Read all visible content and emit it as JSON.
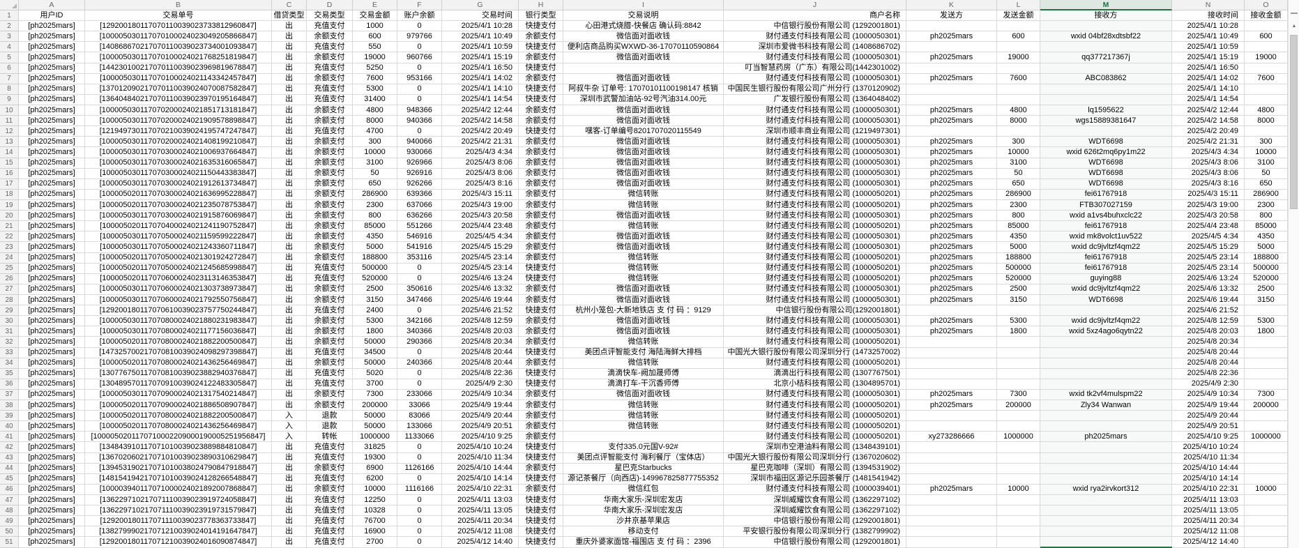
{
  "sheet": {
    "selected_column": "M",
    "first_row_number": "1",
    "last_row_number": "51",
    "column_letters": [
      "A",
      "B",
      "C",
      "D",
      "E",
      "F",
      "G",
      "H",
      "I",
      "J",
      "K",
      "L",
      "M",
      "N",
      "O"
    ],
    "field_headers": [
      "用户ID",
      "交易单号",
      "借贷类型",
      "交易类型",
      "交易金额",
      "账户余额",
      "交易时间",
      "银行类型",
      "交易说明",
      "商户名称",
      "发送方",
      "发送金额",
      "接收方",
      "接收时间",
      "接收金额"
    ],
    "rows": [
      [
        "[ph2025mars]",
        "[129200180117070110039023733812960847]",
        "出",
        "充值支付",
        "1000",
        "0",
        "2025/4/1 10:28",
        "快捷支付",
        "心田港式烧腊-快餐店 确认码:8842",
        "中信银行股份有限公司 (1292001801)",
        "",
        "",
        "",
        "2025/4/1 10:28",
        ""
      ],
      [
        "[ph2025mars]",
        "[100005030117070100024023049205866847]",
        "出",
        "余额支付",
        "600",
        "979766",
        "2025/4/1 10:49",
        "余额支付",
        "微信面对面收钱",
        "财付通支付科技有限公司 (1000050301)",
        "ph2025mars",
        "600",
        "wxid 04bf28xdtsbf22",
        "2025/4/1 10:49",
        "600"
      ],
      [
        "[ph2025mars]",
        "[140868670217070110039023734001093847]",
        "出",
        "充值支付",
        "550",
        "0",
        "2025/4/1 10:59",
        "快捷支付",
        "便利店商品购买WXWD-36-17070110590864",
        "深圳市爱微书科技有限公司 (1408686702)",
        "",
        "",
        "",
        "2025/4/1 10:59",
        ""
      ],
      [
        "[ph2025mars]",
        "[100005030117070100024021768251819847]",
        "出",
        "余额支付",
        "19000",
        "960766",
        "2025/4/1 15:19",
        "余额支付",
        "微信面对面收钱",
        "财付通支付科技有限公司 (1000050301)",
        "ph2025mars",
        "19000",
        "qq377217367j",
        "2025/4/1 15:19",
        "19000"
      ],
      [
        "[ph2025mars]",
        "[144230100217070110039023969819678847]",
        "出",
        "充值支付",
        "5250",
        "0",
        "2025/4/1 16:50",
        "快捷支付",
        "",
        "叮当智慧药房（广东）有限公司(1442301002)",
        "",
        "",
        "",
        "2025/4/1 16:50",
        ""
      ],
      [
        "[ph2025mars]",
        "[100005030117070100024021143342457847]",
        "出",
        "余额支付",
        "7600",
        "953166",
        "2025/4/1 14:02",
        "余额支付",
        "微信面对面收钱",
        "财付通支付科技有限公司 (1000050301)",
        "ph2025mars",
        "7600",
        "ABC083862",
        "2025/4/1 14:02",
        "7600"
      ],
      [
        "[ph2025mars]",
        "[137012090217070110039024070087582847]",
        "出",
        "充值支付",
        "5300",
        "0",
        "2025/4/1 14:10",
        "快捷支付",
        "阿叔牛杂 订单号: 17070101100198147 核销",
        "中国民生银行股份有限公司广州分行 (1370120902)",
        "",
        "",
        "",
        "2025/4/1 14:10",
        ""
      ],
      [
        "[ph2025mars]",
        "[136404840217070110039023970195164847]",
        "出",
        "充值支付",
        "31400",
        "0",
        "2025/4/1 14:54",
        "快捷支付",
        "深圳市武警加油站-92号汽油314.00元",
        "广发银行股份有限公司 (1364048402)",
        "",
        "",
        "",
        "2025/4/1 14:54",
        ""
      ],
      [
        "[ph2025mars]",
        "[100005030117070200024021851713181847]",
        "出",
        "余额支付",
        "4800",
        "948366",
        "2025/4/2 12:44",
        "余额支付",
        "微信面对面收钱",
        "财付通支付科技有限公司 (1000050301)",
        "ph2025mars",
        "4800",
        "lq1595622",
        "2025/4/2 12:44",
        "4800"
      ],
      [
        "[ph2025mars]",
        "[100005030117070200024021909578898847]",
        "出",
        "余额支付",
        "8000",
        "940366",
        "2025/4/2 14:58",
        "余额支付",
        "微信面对面收钱",
        "财付通支付科技有限公司 (1000050301)",
        "ph2025mars",
        "8000",
        "wgs15889381647",
        "2025/4/2 14:58",
        "8000"
      ],
      [
        "[ph2025mars]",
        "[121949730117070210039024195747247847]",
        "出",
        "充值支付",
        "4700",
        "0",
        "2025/4/2 20:49",
        "快捷支付",
        "嘿客-订单编号8201707020115549",
        "深圳市顺丰商业有限公司 (1219497301)",
        "",
        "",
        "",
        "2025/4/2 20:49",
        ""
      ],
      [
        "[ph2025mars]",
        "[100005030117070200024021408199210847]",
        "出",
        "余额支付",
        "300",
        "940066",
        "2025/4/2 21:31",
        "余额支付",
        "微信面对面收钱",
        "财付通支付科技有限公司 (1000050301)",
        "ph2025mars",
        "300",
        "WDT6698",
        "2025/4/2 21:31",
        "300"
      ],
      [
        "[ph2025mars]",
        "[100005030117070300024021006937664847]",
        "出",
        "余额支付",
        "10000",
        "930066",
        "2025/4/3 4:34",
        "余额支付",
        "微信面对面收钱",
        "财付通支付科技有限公司 (1000050301)",
        "ph2025mars",
        "10000",
        "wxid 626t2mq6py1m22",
        "2025/4/3 4:34",
        "10000"
      ],
      [
        "[ph2025mars]",
        "[100005030117070300024021635316065847]",
        "出",
        "余额支付",
        "3100",
        "926966",
        "2025/4/3 8:06",
        "余额支付",
        "微信面对面收钱",
        "财付通支付科技有限公司 (1000050301)",
        "ph2025mars",
        "3100",
        "WDT6698",
        "2025/4/3 8:06",
        "3100"
      ],
      [
        "[ph2025mars]",
        "[100005030117070300024021150443383847]",
        "出",
        "余额支付",
        "50",
        "926916",
        "2025/4/3 8:06",
        "余额支付",
        "微信面对面收钱",
        "财付通支付科技有限公司 (1000050301)",
        "ph2025mars",
        "50",
        "WDT6698",
        "2025/4/3 8:06",
        "50"
      ],
      [
        "[ph2025mars]",
        "[100005030117070300024021912613734847]",
        "出",
        "余额支付",
        "650",
        "926266",
        "2025/4/3 8:16",
        "余额支付",
        "微信面对面收钱",
        "财付通支付科技有限公司 (1000050301)",
        "ph2025mars",
        "650",
        "WDT6698",
        "2025/4/3 8:16",
        "650"
      ],
      [
        "[ph2025mars]",
        "[100005020117070300024021636995228847]",
        "出",
        "余额支付",
        "286900",
        "639366",
        "2025/4/3 15:11",
        "余额支付",
        "微信转账",
        "财付通支付科技有限公司 (1000050201)",
        "ph2025mars",
        "286900",
        "fei61767918",
        "2025/4/3 15:11",
        "286900"
      ],
      [
        "[ph2025mars]",
        "[100005020117070300024021235078753847]",
        "出",
        "余额支付",
        "2300",
        "637066",
        "2025/4/3 19:00",
        "余额支付",
        "微信转账",
        "财付通支付科技有限公司 (1000050201)",
        "ph2025mars",
        "2300",
        "FTB307027159",
        "2025/4/3 19:00",
        "2300"
      ],
      [
        "[ph2025mars]",
        "[100005030117070300024021915876069847]",
        "出",
        "余额支付",
        "800",
        "636266",
        "2025/4/3 20:58",
        "余额支付",
        "微信面对面收钱",
        "财付通支付科技有限公司 (1000050301)",
        "ph2025mars",
        "800",
        "wxid a1vs4buhxclc22",
        "2025/4/3 20:58",
        "800"
      ],
      [
        "[ph2025mars]",
        "[100005020117070400024021241190752847]",
        "出",
        "余额支付",
        "85000",
        "551266",
        "2025/4/4 23:48",
        "余额支付",
        "微信转账",
        "财付通支付科技有限公司 (1000050201)",
        "ph2025mars",
        "85000",
        "fei61767918",
        "2025/4/4 23:48",
        "85000"
      ],
      [
        "[ph2025mars]",
        "[100005030117070500024021159599222847]",
        "出",
        "余额支付",
        "4350",
        "546916",
        "2025/4/5 4:34",
        "余额支付",
        "微信面对面收钱",
        "财付通支付科技有限公司 (1000050301)",
        "ph2025mars",
        "4350",
        "wxid mk8volct1uv522",
        "2025/4/5 4:34",
        "4350"
      ],
      [
        "[ph2025mars]",
        "[100005030117070500024021243360711847]",
        "出",
        "余额支付",
        "5000",
        "541916",
        "2025/4/5 15:29",
        "余额支付",
        "微信面对面收钱",
        "财付通支付科技有限公司 (1000050301)",
        "ph2025mars",
        "5000",
        "wxid dc9jvltzf4qm22",
        "2025/4/5 15:29",
        "5000"
      ],
      [
        "[ph2025mars]",
        "[100005020117070500024021301924272847]",
        "出",
        "余额支付",
        "188800",
        "353116",
        "2025/4/5 23:14",
        "余额支付",
        "微信转账",
        "财付通支付科技有限公司 (1000050201)",
        "ph2025mars",
        "188800",
        "fei61767918",
        "2025/4/5 23:14",
        "188800"
      ],
      [
        "[ph2025mars]",
        "[100005020117070500024021245685998847]",
        "出",
        "充值支付",
        "500000",
        "0",
        "2025/4/5 23:14",
        "快捷支付",
        "微信转账",
        "财付通支付科技有限公司 (1000050201)",
        "ph2025mars",
        "500000",
        "fei61767918",
        "2025/4/5 23:14",
        "500000"
      ],
      [
        "[ph2025mars]",
        "[100005020117070600024023113146353847]",
        "出",
        "充值支付",
        "520000",
        "0",
        "2025/4/6 13:24",
        "快捷支付",
        "微信转账",
        "财付通支付科技有限公司 (1000050201)",
        "ph2025mars",
        "520000",
        "guying88",
        "2025/4/6 13:24",
        "520000"
      ],
      [
        "[ph2025mars]",
        "[100005030117070600024021303738973847]",
        "出",
        "余额支付",
        "2500",
        "350616",
        "2025/4/6 13:32",
        "余额支付",
        "微信面对面收钱",
        "财付通支付科技有限公司 (1000050301)",
        "ph2025mars",
        "2500",
        "wxid dc9jvltzf4qm22",
        "2025/4/6 13:32",
        "2500"
      ],
      [
        "[ph2025mars]",
        "[100005030117070600024021792550756847]",
        "出",
        "余额支付",
        "3150",
        "347466",
        "2025/4/6 19:44",
        "余额支付",
        "微信面对面收钱",
        "财付通支付科技有限公司 (1000050301)",
        "ph2025mars",
        "3150",
        "WDT6698",
        "2025/4/6 19:44",
        "3150"
      ],
      [
        "[ph2025mars]",
        "[129200180117070610039023757750244847]",
        "出",
        "充值支付",
        "2400",
        "0",
        "2025/4/6 21:52",
        "快捷支付",
        "杭州小笼包-大新地铁店 支 付 码 ：9129",
        "中信银行股份有限公司(1292001801)",
        "",
        "",
        "",
        "2025/4/6 21:52",
        ""
      ],
      [
        "[ph2025mars]",
        "[100005030117070800024021880231983847]",
        "出",
        "余额支付",
        "5300",
        "342166",
        "2025/4/8 12:59",
        "余额支付",
        "微信面对面收钱",
        "财付通支付科技有限公司 (1000050301)",
        "ph2025mars",
        "5300",
        "wxid dc9jvltzf4qm22",
        "2025/4/8 12:59",
        "5300"
      ],
      [
        "[ph2025mars]",
        "[100005030117070800024021177156036847]",
        "出",
        "余额支付",
        "1800",
        "340366",
        "2025/4/8 20:03",
        "余额支付",
        "微信面对面收钱",
        "财付通支付科技有限公司 (1000050301)",
        "ph2025mars",
        "1800",
        "wxid 5xz4ago6qytn22",
        "2025/4/8 20:03",
        "1800"
      ],
      [
        "[ph2025mars]",
        "[100005020117070800024021882200500847]",
        "出",
        "余额支付",
        "50000",
        "290366",
        "2025/4/8 20:34",
        "余额支付",
        "微信转账",
        "财付通支付科技有限公司 (1000050201)",
        "",
        "",
        "",
        "2025/4/8 20:34",
        ""
      ],
      [
        "[ph2025mars]",
        "[147325700217070810039024098297398847]",
        "出",
        "充值支付",
        "34500",
        "0",
        "2025/4/8 20:44",
        "快捷支付",
        "美团点评智能支付 海陆海鲜大排档",
        "中国光大银行股份有限公司深圳分行 (1473257002)",
        "",
        "",
        "",
        "2025/4/8 20:44",
        ""
      ],
      [
        "[ph2025mars]",
        "[100005020117070800024021436256469847]",
        "出",
        "余额支付",
        "50000",
        "240366",
        "2025/4/8 20:44",
        "余额支付",
        "微信转账",
        "财付通支付科技有限公司 (1000050201)",
        "",
        "",
        "",
        "2025/4/8 20:44",
        ""
      ],
      [
        "[ph2025mars]",
        "[130776750117070810039023882940376847]",
        "出",
        "充值支付",
        "5020",
        "0",
        "2025/4/8 22:36",
        "快捷支付",
        "滴滴快车-阙加晟师傅",
        "滴滴出行科技有限公司 (1307767501)",
        "",
        "",
        "",
        "2025/4/8 22:36",
        ""
      ],
      [
        "[ph2025mars]",
        "[130489570117070910039024122483305847]",
        "出",
        "充值支付",
        "3700",
        "0",
        "2025/4/9 2:30",
        "快捷支付",
        "滴滴打车-干沉香师傅",
        "北京小桔科技有限公司 (1304895701)",
        "",
        "",
        "",
        "2025/4/9 2:30",
        ""
      ],
      [
        "[ph2025mars]",
        "[100005030117070900024021317540214847]",
        "出",
        "余额支付",
        "7300",
        "233066",
        "2025/4/9 10:34",
        "余额支付",
        "微信面对面收钱",
        "财付通支付科技有限公司 (1000050301)",
        "ph2025mars",
        "7300",
        "wxid tk2vf4mulspm22",
        "2025/4/9 10:34",
        "7300"
      ],
      [
        "[ph2025mars]",
        "[100005020117070900024021886508907847]",
        "出",
        "余额支付",
        "200000",
        "33066",
        "2025/4/9 19:44",
        "余额支付",
        "微信转账",
        "财付通支付科技有限公司 (1000050201)",
        "ph2025mars",
        "200000",
        "Zly34 Wanwan",
        "2025/4/9 19:44",
        "200000"
      ],
      [
        "[ph2025mars]",
        "[100005020117070800024021882200500847]",
        "入",
        "退款",
        "50000",
        "83066",
        "2025/4/9 20:44",
        "余额支付",
        "微信转账",
        "财付通支付科技有限公司 (1000050201)",
        "",
        "",
        "",
        "2025/4/9 20:44",
        ""
      ],
      [
        "[ph2025mars]",
        "[100005020117070800024021436256469847]",
        "入",
        "退款",
        "50000",
        "133066",
        "2025/4/9 20:51",
        "余额支付",
        "微信转账",
        "财付通支付科技有限公司 (1000050201)",
        "",
        "",
        "",
        "2025/4/9 20:51",
        ""
      ],
      [
        "[ph2025mars]",
        "[1000050201170710002209000190005251956847]",
        "入",
        "转帐",
        "1000000",
        "1133066",
        "2025/4/10 9:25",
        "余额支付",
        "",
        "财付通支付科技有限公司 (1000050201)",
        "xy273286666",
        "1000000",
        "ph2025mars",
        "2025/4/10 9:25",
        "1000000"
      ],
      [
        "[ph2025mars]",
        "[134843910117071010039023889884810847]",
        "出",
        "充值支付",
        "31825",
        "0",
        "2025/4/10 10:24",
        "快捷支付",
        "支付335.0元国V-92#",
        "深圳市空港油料有限公司 (1348439101)",
        "",
        "",
        "",
        "2025/4/10 10:24",
        ""
      ],
      [
        "[ph2025mars]",
        "[136702060217071010039023890310629847]",
        "出",
        "充值支付",
        "19300",
        "0",
        "2025/4/10 11:34",
        "快捷支付",
        "美团点评智能支付 海利餐厅（宝体店）",
        "中国光大银行股份有限公司深圳分行 (1367020602)",
        "",
        "",
        "",
        "2025/4/10 11:34",
        ""
      ],
      [
        "[ph2025mars]",
        "[139453190217071010038024790847918847]",
        "出",
        "余额支付",
        "6900",
        "1126166",
        "2025/4/10 14:44",
        "余额支付",
        "星巴克Starbucks",
        "星巴克咖啡（深圳）有限公司 (1394531902)",
        "",
        "",
        "",
        "2025/4/10 14:44",
        ""
      ],
      [
        "[ph2025mars]",
        "[148154194217071010039024128266548847]",
        "出",
        "充值支付",
        "6200",
        "0",
        "2025/4/10 14:14",
        "快捷支付",
        "源记茶餐厅（向西店)-149967825877755352",
        "深圳市福田区源记乐园茶餐厅 (1481541942)",
        "",
        "",
        "",
        "2025/4/10 14:14",
        ""
      ],
      [
        "[ph2025mars]",
        "[100003940117071000024021892007868847]",
        "出",
        "余额支付",
        "10000",
        "1116166",
        "2025/4/10 22:31",
        "余额支付",
        "微信红包",
        "财付通支付科技有限公司 (1000039401)",
        "ph2025mars",
        "10000",
        "wxid rya2irvkort312",
        "2025/4/10 22:31",
        "10000"
      ],
      [
        "[ph2025mars]",
        "[136229710217071110039023919724058847]",
        "出",
        "充值支付",
        "12250",
        "0",
        "2025/4/11 13:03",
        "快捷支付",
        "华南大家乐-深圳宏发店",
        "深圳威耀饮食有限公司 (1362297102)",
        "",
        "",
        "",
        "2025/4/11 13:03",
        ""
      ],
      [
        "[ph2025mars]",
        "[136229710217071110039023919731579847]",
        "出",
        "充值支付",
        "10328",
        "0",
        "2025/4/11 13:05",
        "快捷支付",
        "华南大家乐-深圳宏发店",
        "深圳威耀饮食有限公司 (1362297102)",
        "",
        "",
        "",
        "2025/4/11 13:05",
        ""
      ],
      [
        "[ph2025mars]",
        "[129200180117071110039023778363733847]",
        "出",
        "充值支付",
        "76700",
        "0",
        "2025/4/11 20:34",
        "快捷支付",
        "沙井京基苹果店",
        "中信银行股份有限公司 (1292001801)",
        "",
        "",
        "",
        "2025/4/11 20:34",
        ""
      ],
      [
        "[ph2025mars]",
        "[138279990217071210039024014191647847]",
        "出",
        "充值支付",
        "16900",
        "0",
        "2025/4/12 11:08",
        "快捷支付",
        "移动支付",
        "平安银行股份有限公司深圳分行 (1382799902)",
        "",
        "",
        "",
        "2025/4/12 11:08",
        ""
      ],
      [
        "[ph2025mars]",
        "[129200180117071210039024016090874847]",
        "出",
        "充值支付",
        "2700",
        "0",
        "2025/4/12 14:40",
        "快捷支付",
        "重庆外婆家面馆-福围店 支 付 码 ：2396",
        "中信银行股份有限公司 (1292001801)",
        "",
        "",
        "",
        "2025/4/12 14:40",
        ""
      ]
    ]
  },
  "colors": {
    "selection_green": "#217346",
    "selected_header_bg": "#dce8e1",
    "header_bg": "#f2f2f2",
    "gridline": "#d9d9d9"
  }
}
